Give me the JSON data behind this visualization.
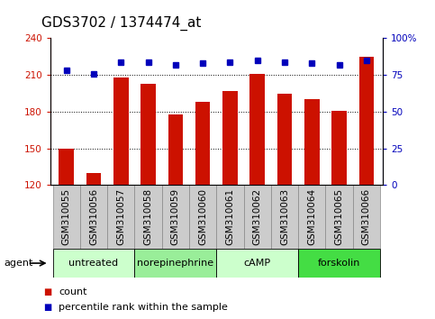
{
  "title": "GDS3702 / 1374474_at",
  "samples": [
    "GSM310055",
    "GSM310056",
    "GSM310057",
    "GSM310058",
    "GSM310059",
    "GSM310060",
    "GSM310061",
    "GSM310062",
    "GSM310063",
    "GSM310064",
    "GSM310065",
    "GSM310066"
  ],
  "count_values": [
    150,
    130,
    208,
    203,
    178,
    188,
    197,
    211,
    195,
    190,
    181,
    225
  ],
  "percentile_values": [
    78,
    76,
    84,
    84,
    82,
    83,
    84,
    85,
    84,
    83,
    82,
    85
  ],
  "agents": [
    {
      "label": "untreated",
      "start": 0,
      "end": 3,
      "color": "#ccffcc"
    },
    {
      "label": "norepinephrine",
      "start": 3,
      "end": 6,
      "color": "#99ee99"
    },
    {
      "label": "cAMP",
      "start": 6,
      "end": 9,
      "color": "#ccffcc"
    },
    {
      "label": "forskolin",
      "start": 9,
      "end": 12,
      "color": "#44dd44"
    }
  ],
  "ylim_left": [
    120,
    240
  ],
  "ylim_right": [
    0,
    100
  ],
  "yticks_left": [
    120,
    150,
    180,
    210,
    240
  ],
  "yticks_right": [
    0,
    25,
    50,
    75,
    100
  ],
  "ytick_right_labels": [
    "0",
    "25",
    "50",
    "75",
    "100%"
  ],
  "bar_color": "#cc1100",
  "dot_color": "#0000bb",
  "gridline_ticks": [
    150,
    180,
    210
  ],
  "agent_label": "agent",
  "legend_count": "count",
  "legend_percentile": "percentile rank within the sample",
  "title_fontsize": 11,
  "tick_fontsize": 7.5,
  "agent_fontsize": 8,
  "legend_fontsize": 8
}
